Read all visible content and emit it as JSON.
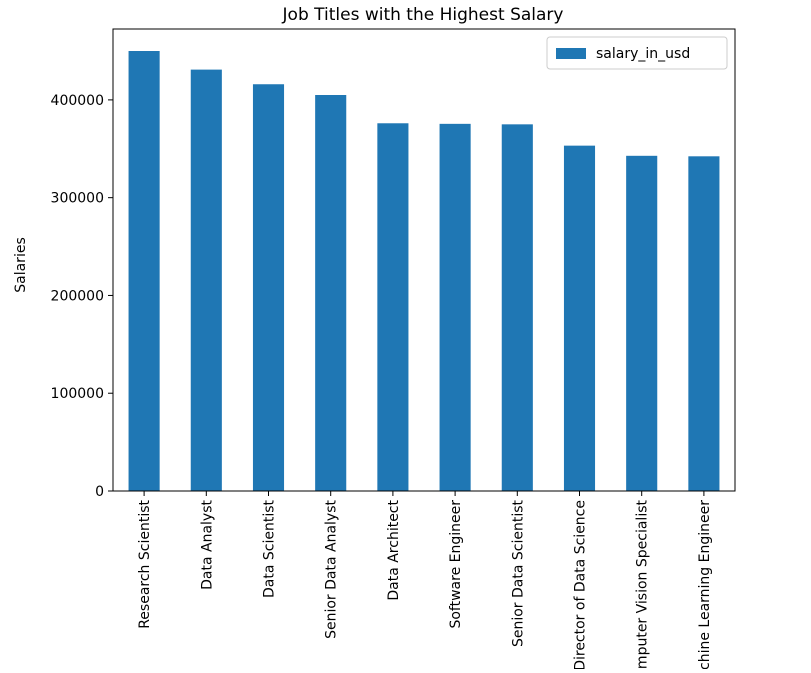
{
  "chart_data": {
    "type": "bar",
    "title": "Job Titles with the Highest Salary",
    "xlabel": "",
    "ylabel": "Salaries",
    "categories": [
      "Research Scientist",
      "Data Analyst",
      "Data Scientist",
      "Senior Data Analyst",
      "Data Architect",
      "Software Engineer",
      "Senior Data Scientist",
      "Director of Data Science",
      "Computer Vision Specialist",
      "Machine Learning Engineer"
    ],
    "series": [
      {
        "name": "salary_in_usd",
        "color": "#1f77b4",
        "values": [
          450000,
          430967,
          416000,
          405000,
          376080,
          375500,
          375000,
          353200,
          342810,
          342300
        ]
      }
    ],
    "ylim": [
      0,
      472500
    ],
    "yticks": [
      0,
      100000,
      200000,
      300000,
      400000
    ],
    "ytick_labels": [
      "0",
      "100000",
      "200000",
      "300000",
      "400000"
    ],
    "grid": false,
    "legend_position": "top-right"
  }
}
